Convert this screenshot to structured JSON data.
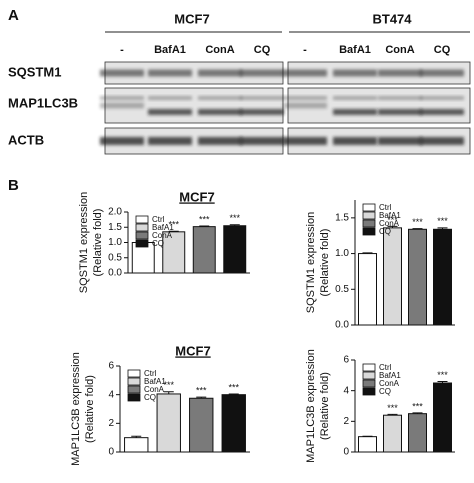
{
  "panels": [
    "A",
    "B"
  ],
  "blot": {
    "groups": [
      "MCF7",
      "BT474"
    ],
    "lanes": [
      [
        "-",
        "BafA1",
        "ConA",
        "CQ"
      ],
      [
        "-",
        "BafA1",
        "ConA",
        "CQ"
      ]
    ],
    "rows": [
      "SQSTM1",
      "MAP1LC3B",
      "ACTB"
    ]
  },
  "chart_data": [
    {
      "type": "bar",
      "title": "MCF7",
      "ylabel": [
        "SQSTM1 expression",
        "(Relative fold)"
      ],
      "categories": [
        "Ctrl",
        "BafA1",
        "ConA",
        "CQ"
      ],
      "colors": [
        "#ffffff",
        "#d9d9d9",
        "#7a7a7a",
        "#111111"
      ],
      "values": [
        1.0,
        1.35,
        1.52,
        1.55
      ],
      "errors": [
        0.01,
        0.02,
        0.02,
        0.03
      ],
      "annotations": [
        null,
        "***",
        "***",
        "***"
      ],
      "ylim": [
        0,
        2
      ],
      "yticks": [
        {
          "value": 0,
          "label": "0.0"
        },
        0.5,
        {
          "value": 1,
          "label": "1.0"
        },
        1.5,
        {
          "value": 2,
          "label": "2.0"
        }
      ],
      "legend": "upper left"
    },
    {
      "type": "bar",
      "ylabel": [
        "SQSTM1 expression",
        "(Relative fold)"
      ],
      "categories": [
        "Ctrl",
        "BafA1",
        "ConA",
        "CQ"
      ],
      "colors": [
        "#ffffff",
        "#d9d9d9",
        "#7a7a7a",
        "#111111"
      ],
      "values": [
        1.0,
        1.36,
        1.34,
        1.34
      ],
      "errors": [
        0.01,
        0.02,
        0.01,
        0.02
      ],
      "annotations": [
        null,
        "***",
        "***",
        "***"
      ],
      "ylim": [
        0,
        1.75
      ],
      "yticks": [
        {
          "value": 0,
          "label": "0.0"
        },
        0.5,
        {
          "value": 1,
          "label": "1.0"
        },
        1.5
      ],
      "legend": "upper left"
    },
    {
      "type": "bar",
      "title": "MCF7",
      "ylabel": [
        "MAP1LC3B expression",
        "(Relative fold)"
      ],
      "categories": [
        "Ctrl",
        "BafA1",
        "ConA",
        "CQ"
      ],
      "colors": [
        "#ffffff",
        "#d9d9d9",
        "#7a7a7a",
        "#111111"
      ],
      "values": [
        1.0,
        4.05,
        3.75,
        4.0
      ],
      "errors": [
        0.1,
        0.15,
        0.08,
        0.05
      ],
      "annotations": [
        null,
        "***",
        "***",
        "***"
      ],
      "ylim": [
        0,
        6
      ],
      "yticks": [
        0,
        2,
        4,
        6
      ],
      "legend": "upper left"
    },
    {
      "type": "bar",
      "ylabel": [
        "MAP1LC3B expression",
        "(Relative fold)"
      ],
      "categories": [
        "Ctrl",
        "BafA1",
        "ConA",
        "CQ"
      ],
      "colors": [
        "#ffffff",
        "#d9d9d9",
        "#7a7a7a",
        "#111111"
      ],
      "values": [
        1.0,
        2.4,
        2.5,
        4.5
      ],
      "errors": [
        0.03,
        0.05,
        0.05,
        0.1
      ],
      "annotations": [
        null,
        "***",
        "***",
        "***"
      ],
      "ylim": [
        0,
        6
      ],
      "yticks": [
        0,
        2,
        4,
        6
      ],
      "legend": "upper left"
    }
  ]
}
